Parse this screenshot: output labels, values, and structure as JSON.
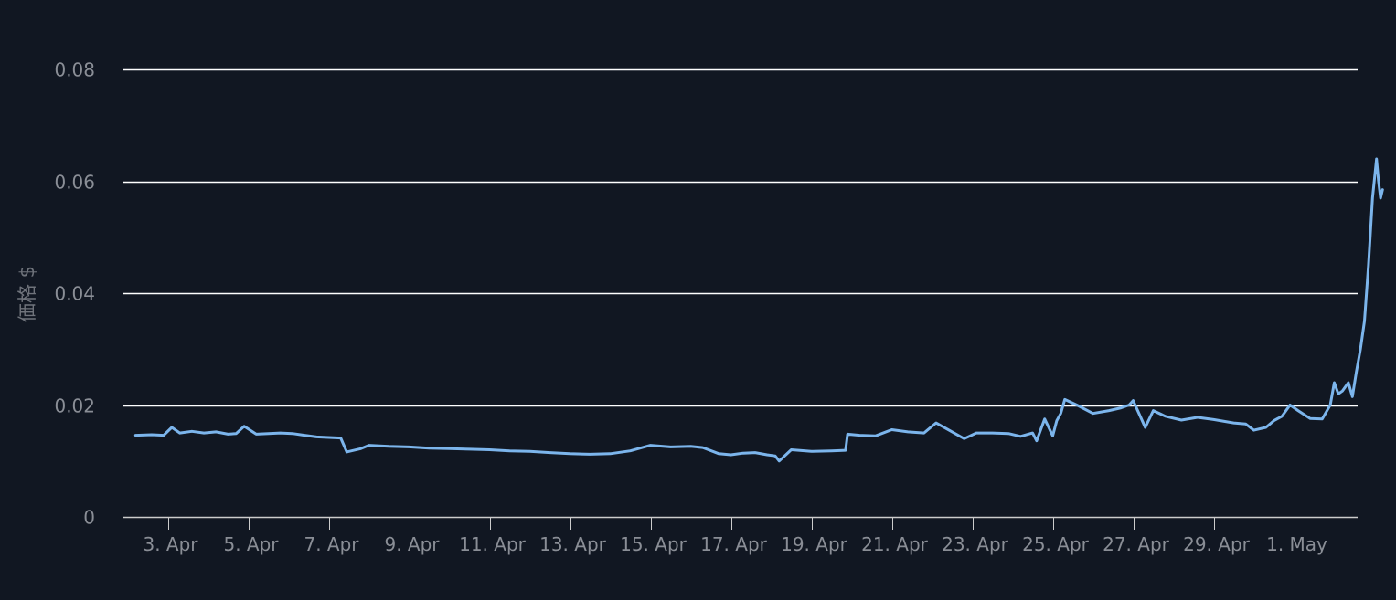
{
  "chart_data": {
    "type": "line",
    "title": "",
    "xlabel": "",
    "ylabel": "価格 $",
    "ylim": [
      0,
      0.08
    ],
    "yticks": [
      "0",
      "0.02",
      "0.04",
      "0.06",
      "0.08"
    ],
    "xticks": [
      "3. Apr",
      "5. Apr",
      "7. Apr",
      "9. Apr",
      "11. Apr",
      "13. Apr",
      "15. Apr",
      "17. Apr",
      "19. Apr",
      "21. Apr",
      "23. Apr",
      "25. Apr",
      "27. Apr",
      "29. Apr",
      "1. May"
    ],
    "grid": true,
    "legend": "none",
    "line_color": "#7cb5ec",
    "background_color": "#111722",
    "grid_color": "#ffffff",
    "series": [
      {
        "x": [
          2.2,
          2.6,
          2.9,
          3.1,
          3.3,
          3.6,
          3.9,
          4.2,
          4.5,
          4.7,
          4.9,
          5.2,
          5.5,
          5.8,
          6.1,
          6.4,
          6.7,
          7.0,
          7.3,
          7.45,
          7.8,
          8.0,
          8.5,
          9.0,
          9.5,
          10.0,
          10.5,
          11.0,
          11.5,
          12.0,
          12.5,
          13.0,
          13.5,
          14.0,
          14.5,
          15.0,
          15.5,
          16.0,
          16.3,
          16.7,
          17.0,
          17.3,
          17.6,
          17.9,
          18.1,
          18.2,
          18.5,
          19.0,
          19.5,
          19.85,
          19.9,
          20.2,
          20.6,
          21.0,
          21.4,
          21.8,
          22.1,
          22.5,
          22.8,
          23.1,
          23.5,
          23.9,
          24.2,
          24.5,
          24.6,
          24.8,
          25.0,
          25.1,
          25.2,
          25.3,
          25.6,
          26.0,
          26.4,
          26.7,
          26.9,
          27.0,
          27.3,
          27.5,
          27.8,
          28.2,
          28.6,
          29.0,
          29.5,
          29.8,
          30.0,
          30.3,
          30.5,
          30.7,
          30.9,
          31.1,
          31.4,
          31.7,
          31.9,
          32.0,
          32.1,
          32.2,
          32.35,
          32.45,
          32.55,
          32.65,
          32.75,
          32.85,
          32.95,
          33.05,
          33.1,
          33.15,
          33.2
        ],
        "values": [
          0.0146,
          0.0147,
          0.0146,
          0.016,
          0.015,
          0.0153,
          0.015,
          0.0152,
          0.0148,
          0.0149,
          0.0162,
          0.0148,
          0.0149,
          0.015,
          0.0149,
          0.0146,
          0.0143,
          0.0142,
          0.0141,
          0.0116,
          0.0122,
          0.0128,
          0.0126,
          0.0125,
          0.0123,
          0.0122,
          0.0121,
          0.012,
          0.0118,
          0.0117,
          0.0115,
          0.0113,
          0.0112,
          0.0113,
          0.0118,
          0.0128,
          0.0125,
          0.0126,
          0.0124,
          0.0113,
          0.0111,
          0.0114,
          0.0115,
          0.0111,
          0.0109,
          0.01,
          0.012,
          0.0117,
          0.0118,
          0.0119,
          0.0148,
          0.0146,
          0.0145,
          0.0156,
          0.0152,
          0.015,
          0.0168,
          0.0152,
          0.014,
          0.015,
          0.015,
          0.0149,
          0.0144,
          0.015,
          0.0136,
          0.0175,
          0.0145,
          0.0172,
          0.0185,
          0.021,
          0.02,
          0.0185,
          0.019,
          0.0195,
          0.02,
          0.0208,
          0.016,
          0.019,
          0.018,
          0.0173,
          0.0178,
          0.0174,
          0.0168,
          0.0166,
          0.0155,
          0.016,
          0.0172,
          0.018,
          0.02,
          0.019,
          0.0176,
          0.0175,
          0.02,
          0.024,
          0.022,
          0.0225,
          0.024,
          0.0215,
          0.026,
          0.03,
          0.035,
          0.045,
          0.057,
          0.064,
          0.06,
          0.057,
          0.0585
        ]
      }
    ]
  }
}
